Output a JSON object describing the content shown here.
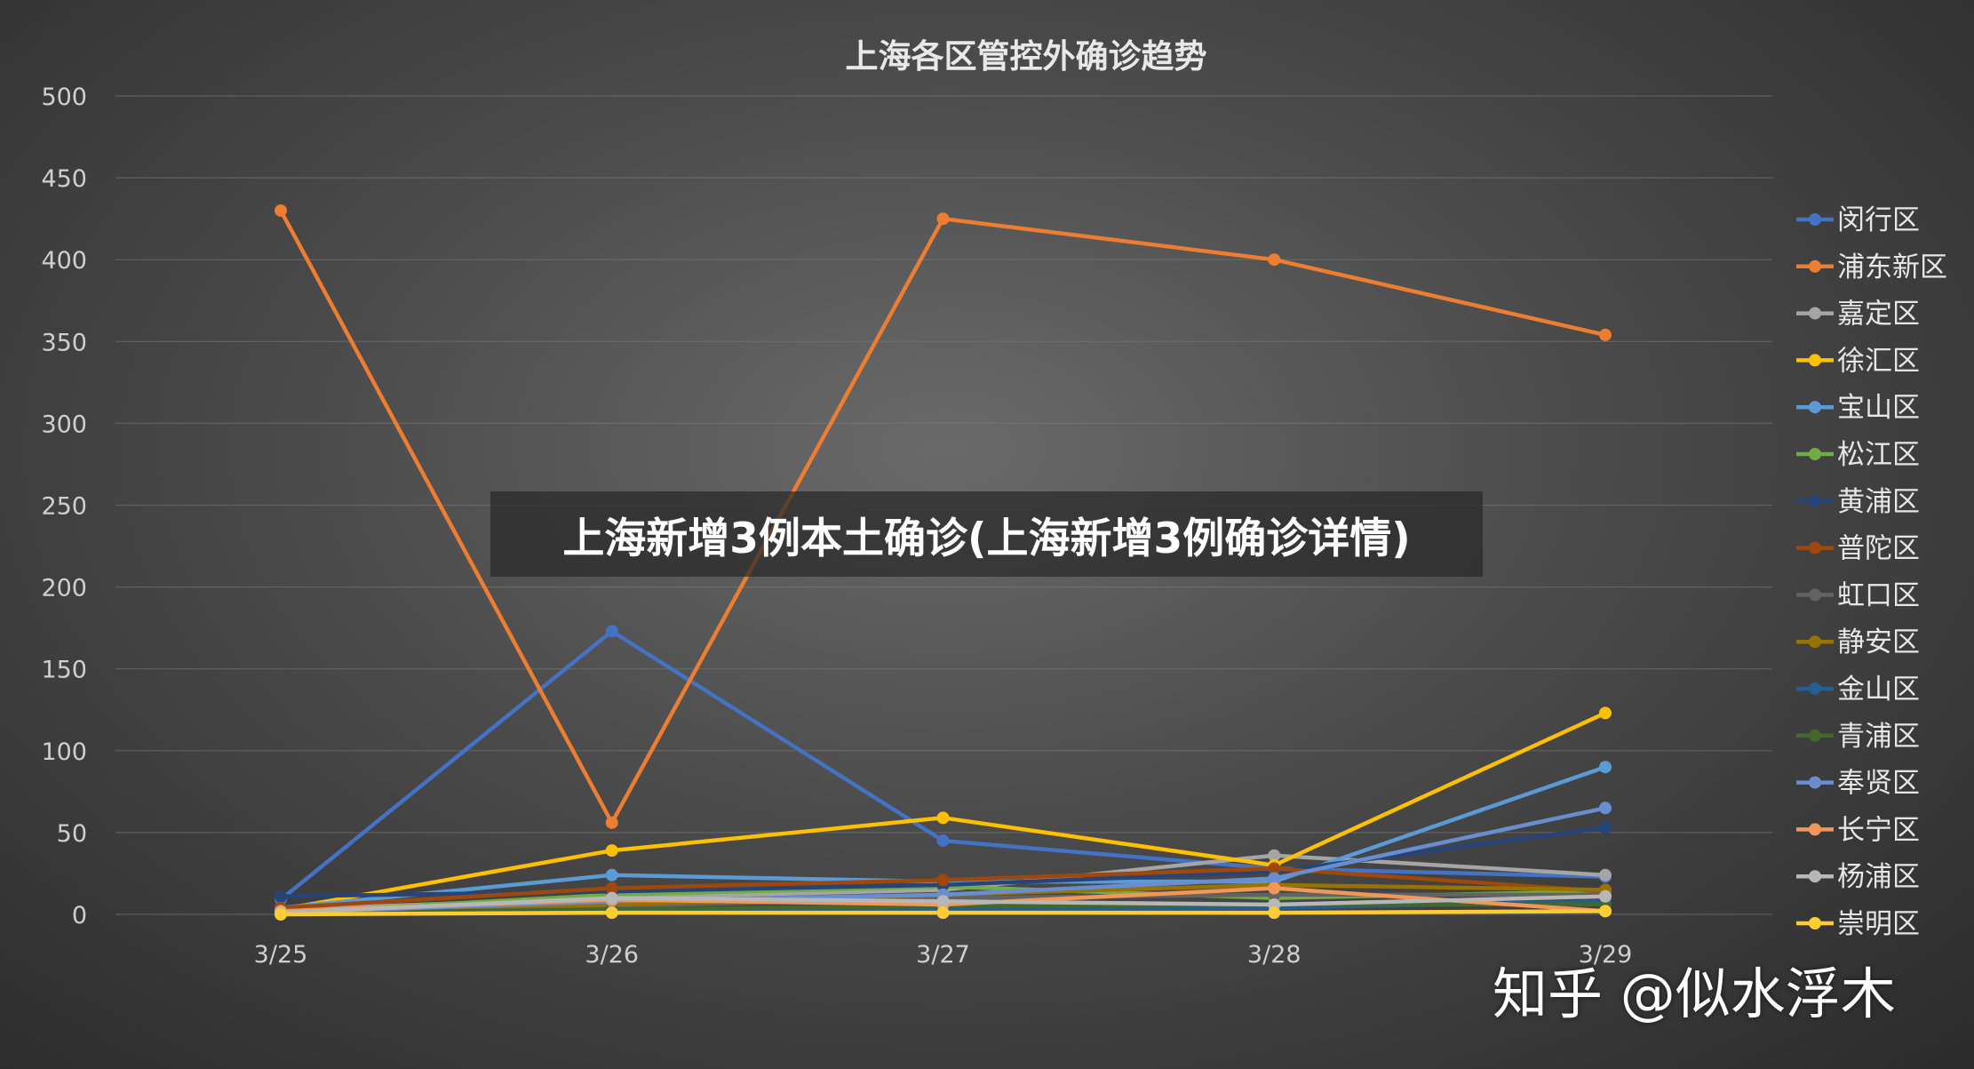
{
  "overlay_text": "上海新增3例本土确诊(上海新增3例确诊详情)",
  "watermark": "知乎 @似水浮木",
  "chart_data": {
    "type": "line",
    "title": "上海各区管控外确诊趋势",
    "xlabel": "",
    "ylabel": "",
    "categories": [
      "3/25",
      "3/26",
      "3/27",
      "3/28",
      "3/29"
    ],
    "ylim": [
      0,
      500
    ],
    "yticks": [
      0,
      50,
      100,
      150,
      200,
      250,
      300,
      350,
      400,
      450,
      500
    ],
    "grid": true,
    "legend_position": "right",
    "series": [
      {
        "name": "闵行区",
        "color": "#4472c4",
        "values": [
          9,
          173,
          45,
          28,
          23
        ]
      },
      {
        "name": "浦东新区",
        "color": "#ed7d31",
        "values": [
          430,
          56,
          425,
          400,
          354
        ]
      },
      {
        "name": "嘉定区",
        "color": "#a5a5a5",
        "values": [
          3,
          10,
          15,
          36,
          24
        ]
      },
      {
        "name": "徐汇区",
        "color": "#ffc000",
        "values": [
          3,
          39,
          59,
          30,
          123
        ]
      },
      {
        "name": "宝山区",
        "color": "#5b9bd5",
        "values": [
          4,
          24,
          20,
          20,
          90
        ]
      },
      {
        "name": "松江区",
        "color": "#70ad47",
        "values": [
          1,
          12,
          17,
          10,
          14
        ]
      },
      {
        "name": "黄浦区",
        "color": "#264478",
        "values": [
          11,
          14,
          18,
          26,
          53
        ]
      },
      {
        "name": "普陀区",
        "color": "#9e480e",
        "values": [
          4,
          16,
          21,
          28,
          14
        ]
      },
      {
        "name": "虹口区",
        "color": "#636363",
        "values": [
          2,
          5,
          10,
          12,
          12
        ]
      },
      {
        "name": "静安区",
        "color": "#997300",
        "values": [
          2,
          6,
          12,
          18,
          15
        ]
      },
      {
        "name": "金山区",
        "color": "#255e91",
        "values": [
          1,
          2,
          3,
          4,
          8
        ]
      },
      {
        "name": "青浦区",
        "color": "#43682b",
        "values": [
          1,
          3,
          5,
          6,
          6
        ]
      },
      {
        "name": "奉贤区",
        "color": "#698ed0",
        "values": [
          1,
          8,
          12,
          22,
          65
        ]
      },
      {
        "name": "长宁区",
        "color": "#f1975a",
        "values": [
          2,
          9,
          6,
          16,
          2
        ]
      },
      {
        "name": "杨浦区",
        "color": "#b7b7b7",
        "values": [
          1,
          10,
          8,
          6,
          11
        ]
      },
      {
        "name": "崇明区",
        "color": "#ffcd33",
        "values": [
          0,
          1,
          1,
          1,
          2
        ]
      }
    ]
  }
}
